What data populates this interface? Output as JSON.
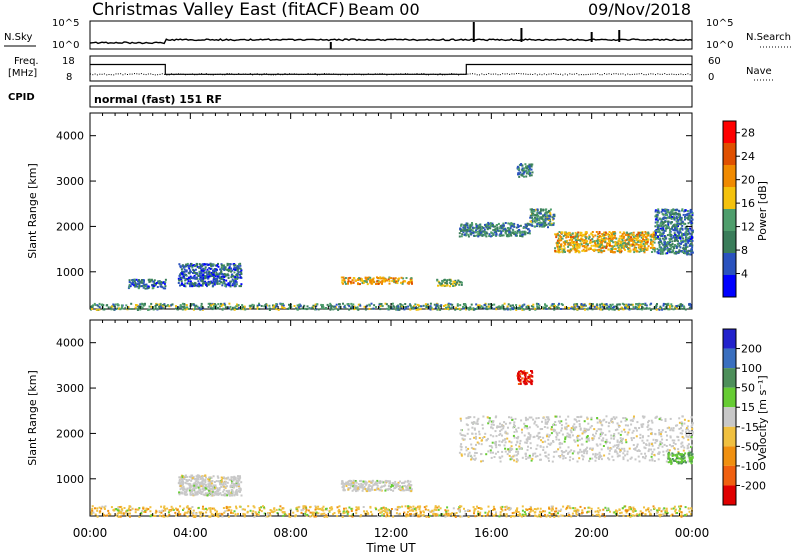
{
  "header": {
    "title": "Christmas Valley East (fitACF)",
    "beam": "Beam 00",
    "date": "09/Nov/2018"
  },
  "strip1": {
    "left_label": "N.Sky",
    "left_ticks": [
      "10^5",
      "10^0"
    ],
    "right_ticks": [
      "10^5",
      "10^0"
    ],
    "right_label": "N.Search"
  },
  "strip2": {
    "left_label_line1": "Freq.",
    "left_label_line2": "[MHz]",
    "left_ticks": [
      "18",
      "8"
    ],
    "right_ticks": [
      "60",
      "0"
    ],
    "right_label": "Nave"
  },
  "strip3": {
    "left_label": "CPID",
    "mode_text": "normal (fast) 151 RF"
  },
  "colors": {
    "power": [
      "#0000ff",
      "#2a52be",
      "#3a7d5a",
      "#4f9e6c",
      "#f4c20d",
      "#f08a00",
      "#e05000",
      "#ff0000"
    ],
    "velocity_pos": [
      "#2222cc",
      "#3a6fbf",
      "#4d8f5a",
      "#66cc33"
    ],
    "velocity_ground": "#c8c8c8",
    "velocity_neg": [
      "#f0c040",
      "#f09010",
      "#f06010",
      "#e00000"
    ]
  },
  "chart_data": [
    {
      "type": "heatmap",
      "name": "power",
      "ylabel": "Slant Range [km]",
      "y_ticks": [
        1000,
        2000,
        3000,
        4000
      ],
      "ylim": [
        180,
        4500
      ],
      "colorbar_label": "Power [dB]",
      "colorbar_ticks": [
        "4",
        "8",
        "12",
        "16",
        "20",
        "24",
        "28"
      ],
      "colorbar_range": [
        0,
        30
      ],
      "echo_regions": [
        {
          "t_start": 0.0,
          "t_end": 24.0,
          "range_min": 180,
          "range_max": 320,
          "level": 10
        },
        {
          "t_start": 1.5,
          "t_end": 3.0,
          "range_min": 650,
          "range_max": 850,
          "level": 6
        },
        {
          "t_start": 3.5,
          "t_end": 6.0,
          "range_min": 700,
          "range_max": 1200,
          "level": 5
        },
        {
          "t_start": 10.0,
          "t_end": 12.8,
          "range_min": 750,
          "range_max": 900,
          "level": 18
        },
        {
          "t_start": 13.8,
          "t_end": 14.8,
          "range_min": 700,
          "range_max": 850,
          "level": 12
        },
        {
          "t_start": 14.7,
          "t_end": 17.5,
          "range_min": 1800,
          "range_max": 2100,
          "level": 8
        },
        {
          "t_start": 17.5,
          "t_end": 18.5,
          "range_min": 2000,
          "range_max": 2400,
          "level": 9
        },
        {
          "t_start": 18.5,
          "t_end": 22.5,
          "range_min": 1450,
          "range_max": 1900,
          "level": 17
        },
        {
          "t_start": 22.5,
          "t_end": 24.0,
          "range_min": 1400,
          "range_max": 2400,
          "level": 7
        },
        {
          "t_start": 17.0,
          "t_end": 17.6,
          "range_min": 3100,
          "range_max": 3400,
          "level": 8
        }
      ]
    },
    {
      "type": "heatmap",
      "name": "velocity",
      "ylabel": "Slant Range [km]",
      "y_ticks": [
        1000,
        2000,
        3000,
        4000
      ],
      "ylim": [
        180,
        4500
      ],
      "colorbar_label": "Velocity [m s⁻¹]",
      "colorbar_ticks": [
        "200",
        "100",
        "50",
        "15",
        "-15",
        "-50",
        "-100",
        "-200"
      ],
      "echo_regions": [
        {
          "t_start": 0.0,
          "t_end": 24.0,
          "range_min": 180,
          "range_max": 420,
          "kind": "neg_low"
        },
        {
          "t_start": 3.5,
          "t_end": 6.0,
          "range_min": 650,
          "range_max": 1100,
          "kind": "ground"
        },
        {
          "t_start": 10.0,
          "t_end": 12.8,
          "range_min": 750,
          "range_max": 980,
          "kind": "ground"
        },
        {
          "t_start": 14.7,
          "t_end": 24.0,
          "range_min": 1400,
          "range_max": 2400,
          "kind": "ground"
        },
        {
          "t_start": 17.0,
          "t_end": 17.6,
          "range_min": 3100,
          "range_max": 3400,
          "kind": "neg_high"
        },
        {
          "t_start": 23.0,
          "t_end": 24.0,
          "range_min": 1350,
          "range_max": 1600,
          "kind": "pos_low"
        }
      ]
    }
  ],
  "x_axis": {
    "label": "Time UT",
    "ticks": [
      "00:00",
      "04:00",
      "08:00",
      "12:00",
      "16:00",
      "20:00",
      "00:00"
    ],
    "range_hours": [
      0,
      24
    ]
  },
  "freq_series": {
    "segments": [
      {
        "t_start": 0,
        "t_end": 3,
        "mhz": 14.6
      },
      {
        "t_start": 3,
        "t_end": 15,
        "mhz": 10.7
      },
      {
        "t_start": 15,
        "t_end": 24,
        "mhz": 14.6
      }
    ]
  }
}
